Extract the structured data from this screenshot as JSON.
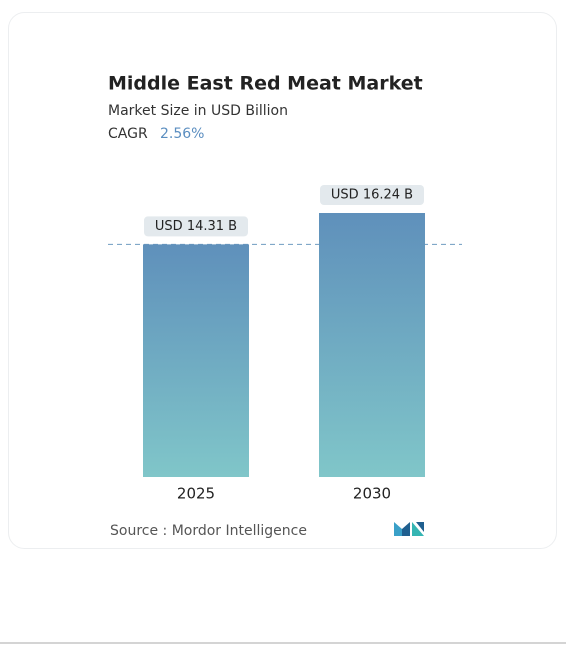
{
  "chart_data": {
    "type": "bar",
    "title": "Middle East Red Meat Market",
    "subtitle": "Market Size in USD Billion",
    "cagr_label": "CAGR",
    "cagr_value": "2.56%",
    "categories": [
      "2025",
      "2030"
    ],
    "values": [
      14.31,
      16.24
    ],
    "value_labels": [
      "USD 14.31 B",
      "USD 16.24 B"
    ],
    "source": "Source :  Mordor Intelligence"
  }
}
